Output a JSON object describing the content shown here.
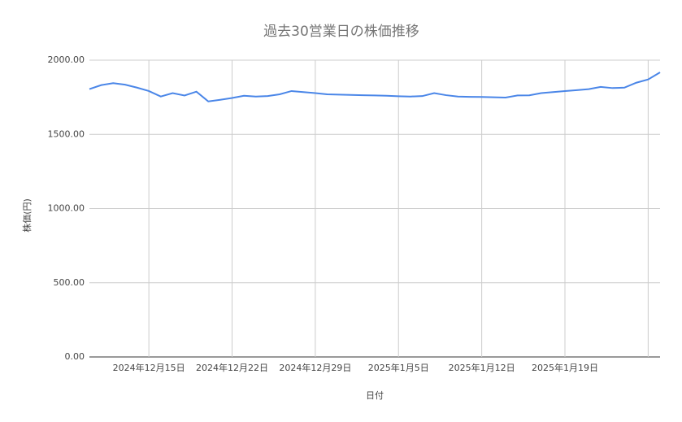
{
  "chart_data": {
    "type": "line",
    "title": "過去30営業日の株価推移",
    "x_label": "日付",
    "y_label": "株価(円)",
    "x": [
      "2024-12-10",
      "2024-12-11",
      "2024-12-12",
      "2024-12-13",
      "2024-12-14",
      "2024-12-15",
      "2024-12-16",
      "2024-12-17",
      "2024-12-18",
      "2024-12-19",
      "2024-12-20",
      "2024-12-21",
      "2024-12-22",
      "2024-12-23",
      "2024-12-24",
      "2024-12-25",
      "2024-12-26",
      "2024-12-27",
      "2024-12-28",
      "2024-12-29",
      "2024-12-30",
      "2024-12-31",
      "2025-01-01",
      "2025-01-02",
      "2025-01-03",
      "2025-01-04",
      "2025-01-05",
      "2025-01-06",
      "2025-01-07",
      "2025-01-08",
      "2025-01-09",
      "2025-01-10",
      "2025-01-11",
      "2025-01-12",
      "2025-01-13",
      "2025-01-14",
      "2025-01-15",
      "2025-01-16",
      "2025-01-17",
      "2025-01-18",
      "2025-01-19",
      "2025-01-20",
      "2025-01-21",
      "2025-01-22",
      "2025-01-23",
      "2025-01-24",
      "2025-01-25",
      "2025-01-26",
      "2025-01-27"
    ],
    "series": [
      {
        "name": "株価",
        "color": "#4a86e8",
        "values": [
          1805,
          1832,
          1845,
          1835,
          1815,
          1792,
          1755,
          1778,
          1762,
          1788,
          1722,
          1733,
          1745,
          1760,
          1755,
          1758,
          1770,
          1792,
          1785,
          1778,
          1770,
          1768,
          1766,
          1764,
          1762,
          1760,
          1757,
          1755,
          1758,
          1778,
          1764,
          1755,
          1753,
          1752,
          1750,
          1748,
          1762,
          1763,
          1778,
          1785,
          1792,
          1798,
          1805,
          1820,
          1812,
          1815,
          1848,
          1870,
          1918
        ]
      }
    ],
    "xlim": [
      "2024-12-10",
      "2025-01-27"
    ],
    "xticks": [
      {
        "value": "2024-12-15",
        "label": "2024年12月15日"
      },
      {
        "value": "2024-12-22",
        "label": "2024年12月22日"
      },
      {
        "value": "2024-12-29",
        "label": "2024年12月29日"
      },
      {
        "value": "2025-01-05",
        "label": "2025年1月5日"
      },
      {
        "value": "2025-01-12",
        "label": "2025年1月12日"
      },
      {
        "value": "2025-01-19",
        "label": "2025年1月19日"
      },
      {
        "value": "2025-01-26",
        "label": null
      }
    ],
    "ylim": [
      0,
      2000
    ],
    "yticks": [
      {
        "value": 0,
        "label": "0.00"
      },
      {
        "value": 500,
        "label": "500.00"
      },
      {
        "value": 1000,
        "label": "1000.00"
      },
      {
        "value": 1500,
        "label": "1500.00"
      },
      {
        "value": 2000,
        "label": "2000.00"
      }
    ],
    "grid": true
  }
}
